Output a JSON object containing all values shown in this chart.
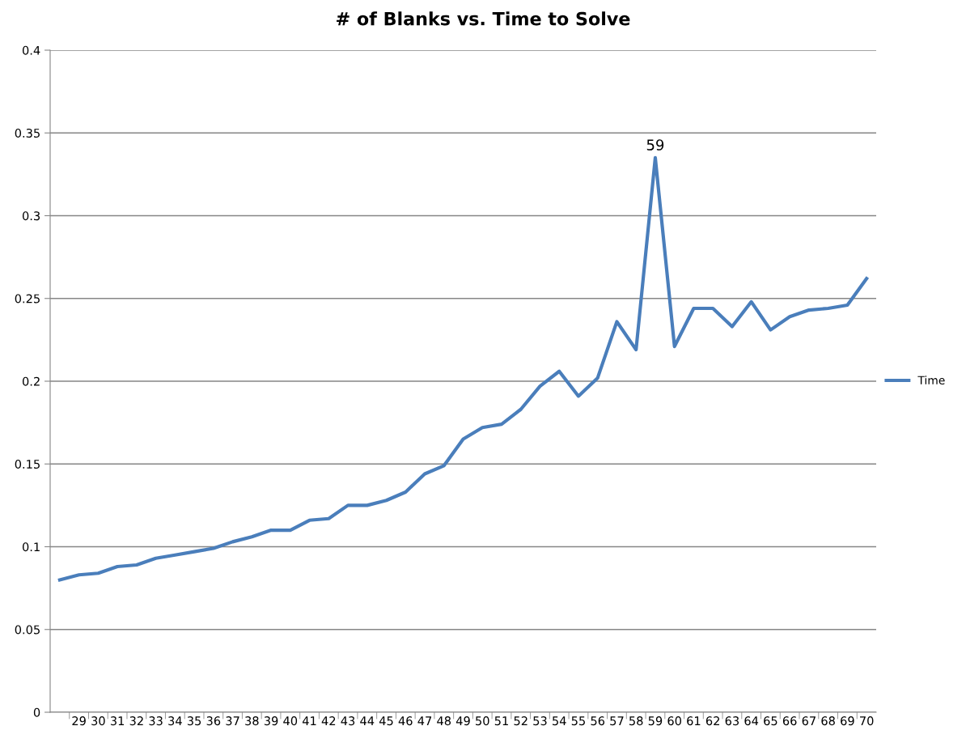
{
  "chart_data": {
    "type": "line",
    "title": "# of Blanks vs. Time to Solve",
    "categories": [
      null,
      "29",
      "30",
      "31",
      "32",
      "33",
      "34",
      "35",
      "36",
      "37",
      "38",
      "39",
      "40",
      "41",
      "42",
      "43",
      "44",
      "45",
      "46",
      "47",
      "48",
      "49",
      "50",
      "51",
      "52",
      "53",
      "54",
      "55",
      "56",
      "57",
      "58",
      "59",
      "60",
      "61",
      "62",
      "63",
      "64",
      "65",
      "66",
      "67",
      "68",
      "69",
      "70"
    ],
    "series": [
      {
        "name": "Time",
        "color": "#4a7ebb",
        "values": [
          0.08,
          0.083,
          0.084,
          0.088,
          0.089,
          0.093,
          0.095,
          0.097,
          0.099,
          0.103,
          0.106,
          0.11,
          0.11,
          0.116,
          0.117,
          0.125,
          0.125,
          0.128,
          0.133,
          0.144,
          0.149,
          0.165,
          0.172,
          0.174,
          0.183,
          0.197,
          0.206,
          0.191,
          0.202,
          0.236,
          0.219,
          0.335,
          0.221,
          0.244,
          0.244,
          0.233,
          0.248,
          0.231,
          0.239,
          0.243,
          0.244,
          0.246,
          0.262
        ]
      }
    ],
    "annotations": [
      {
        "text": "59",
        "x": "59",
        "y": 0.335
      }
    ],
    "ylim": [
      0,
      0.4
    ],
    "yticks": [
      0,
      0.05,
      0.1,
      0.15,
      0.2,
      0.25,
      0.3,
      0.35,
      0.4
    ],
    "grid": "y",
    "legend": "right",
    "marker": "none",
    "line_style": "solid"
  }
}
